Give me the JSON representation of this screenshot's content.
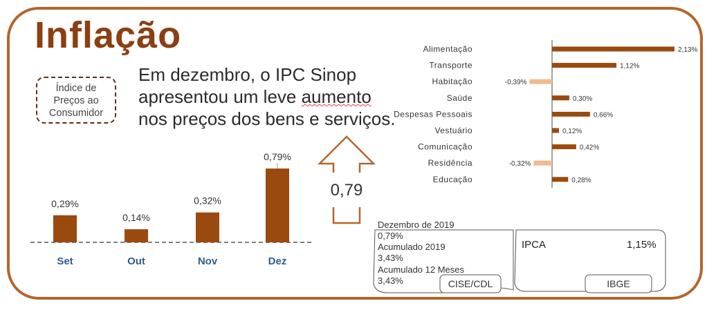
{
  "colors": {
    "accent": "#9a4a0f",
    "border": "#b5652b",
    "negative": "#f3b98c",
    "month_label": "#2e5d8a"
  },
  "header": {
    "title": "Inflação",
    "badge_line1": "Índice de",
    "badge_line2": "Preços ao",
    "badge_line3": "Consumidor"
  },
  "headline": {
    "part1": "Em dezembro, o IPC Sinop apresentou um leve ",
    "highlight": "aumento",
    "part2": " nos preços dos bens e serviços."
  },
  "arrow_value": "0,79",
  "cards": {
    "cise": {
      "line1": "Dezembro de 2019",
      "line2": "0,79%",
      "line3": "Acumulado 2019",
      "line4": "3,43%",
      "line5": "Acumulado 12 Meses",
      "line6": "3,43%",
      "source": "CISE/CDL"
    },
    "ibge": {
      "label": "IPCA",
      "value": "1,15%",
      "source": "IBGE"
    }
  },
  "chart_data": [
    {
      "type": "bar",
      "categories": [
        "Set",
        "Out",
        "Nov",
        "Dez"
      ],
      "values": [
        0.29,
        0.14,
        0.32,
        0.79
      ],
      "value_labels": [
        "0,29%",
        "0,14%",
        "0,32%",
        "0,79%"
      ],
      "ylim": [
        0,
        0.85
      ]
    },
    {
      "type": "bar",
      "orientation": "horizontal",
      "categories": [
        "Alimentação",
        "Transporte",
        "Habitação",
        "Saúde",
        "Despesas Pessoais",
        "Vestuário",
        "Comunicação",
        "Residência",
        "Educação"
      ],
      "values": [
        2.13,
        1.12,
        -0.39,
        0.3,
        0.66,
        0.12,
        0.42,
        -0.32,
        0.28
      ],
      "value_labels": [
        "2,13%",
        "1,12%",
        "-0,39%",
        "0,30%",
        "0,66%",
        "0,12%",
        "0,42%",
        "-0,32%",
        "0,28%"
      ],
      "xlim": [
        -0.8,
        2.3
      ]
    }
  ]
}
